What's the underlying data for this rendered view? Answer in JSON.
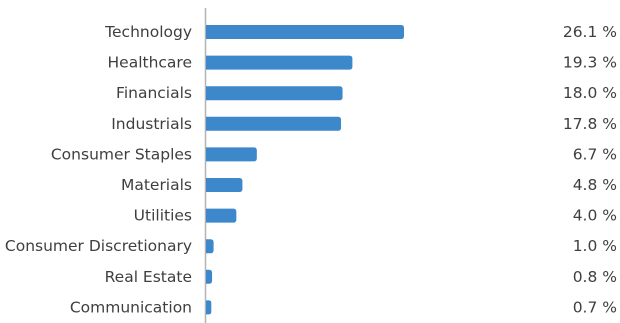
{
  "chart_data": {
    "type": "bar",
    "orientation": "horizontal",
    "categories": [
      "Technology",
      "Healthcare",
      "Financials",
      "Industrials",
      "Consumer Staples",
      "Materials",
      "Utilities",
      "Consumer Discretionary",
      "Real Estate",
      "Communication"
    ],
    "values": [
      26.1,
      19.3,
      18.0,
      17.8,
      6.7,
      4.8,
      4.0,
      1.0,
      0.8,
      0.7
    ],
    "value_labels": [
      "26.1 %",
      "19.3 %",
      "18.0 %",
      "17.8 %",
      "6.7 %",
      "4.8 %",
      "4.0 %",
      "1.0 %",
      "0.8 %",
      "0.7 %"
    ],
    "xlim": [
      0,
      26.1
    ],
    "grid": false,
    "colors": {
      "bar": "#3d87cb",
      "axis": "#b3b3b3",
      "text": "#3f3f3f"
    }
  }
}
